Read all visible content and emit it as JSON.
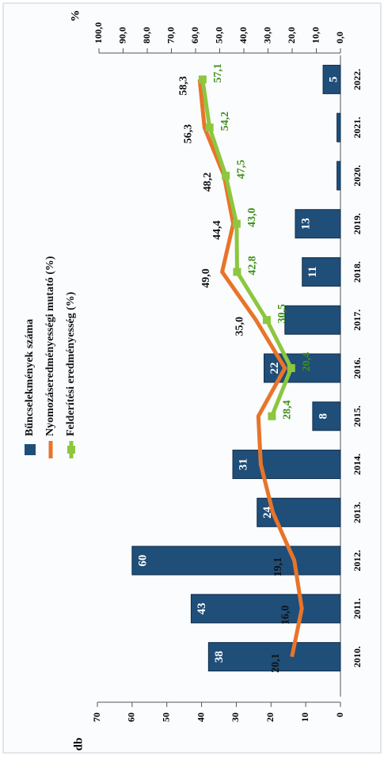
{
  "chart_data": {
    "type": "bar-line",
    "y_unit_label": "db",
    "y2_unit_label": "%",
    "categories": [
      "2010.",
      "2011.",
      "2012.",
      "2013.",
      "2014.",
      "2015.",
      "2016.",
      "2017.",
      "2018.",
      "2019.",
      "2020.",
      "2021.",
      "2022."
    ],
    "ylim": [
      0,
      70
    ],
    "yticks": [
      0,
      10,
      20,
      30,
      40,
      50,
      60,
      70
    ],
    "y2lim": [
      0,
      100
    ],
    "y2ticks": [
      {
        "value": 0,
        "label": "0,0"
      },
      {
        "value": 10,
        "label": "10,0"
      },
      {
        "value": 20,
        "label": "20,0"
      },
      {
        "value": 30,
        "label": "30,0"
      },
      {
        "value": 40,
        "label": "40,0"
      },
      {
        "value": 50,
        "label": "50,0"
      },
      {
        "value": 60,
        "label": "60,0"
      },
      {
        "value": 70,
        "label": "70,0"
      },
      {
        "value": 80,
        "label": "80,0"
      },
      {
        "value": 90,
        "label": "90,0"
      },
      {
        "value": 100,
        "label": "100,0"
      }
    ],
    "series": [
      {
        "name": "Bűncselekmények száma",
        "kind": "bar",
        "color": "#1f4e79",
        "values": [
          38,
          43,
          60,
          24,
          31,
          8,
          22,
          16,
          11,
          13,
          1,
          1,
          5
        ],
        "value_labels": [
          "38",
          "43",
          "60",
          "24",
          "31",
          "8",
          "22",
          null,
          "11",
          "13",
          null,
          null,
          "5"
        ]
      },
      {
        "name": "Nyomozáseredményességi mutató (%)",
        "kind": "line",
        "axis": "y2",
        "color": "#e8742a",
        "values": [
          20.1,
          16.0,
          19.1,
          28,
          33,
          34,
          23,
          35.0,
          49.0,
          44.4,
          48.2,
          56.3,
          58.3
        ],
        "value_labels": [
          "20,1",
          "16,0",
          "19,1",
          null,
          null,
          null,
          null,
          "35,0",
          "49,0",
          "44,4",
          "48,2",
          "56,3",
          "58,3"
        ]
      },
      {
        "name": "Felderítési eredményesség (%)",
        "kind": "line",
        "axis": "y2",
        "color": "#8dc63f",
        "values": [
          null,
          null,
          null,
          null,
          null,
          28.4,
          20.4,
          30.5,
          42.8,
          43.0,
          47.5,
          54.2,
          57.1
        ],
        "value_labels": [
          null,
          null,
          null,
          null,
          null,
          "28,4",
          "20,4",
          "30,5",
          "42,8",
          "43,0",
          "47,5",
          "54,2",
          "57,1"
        ]
      }
    ]
  }
}
